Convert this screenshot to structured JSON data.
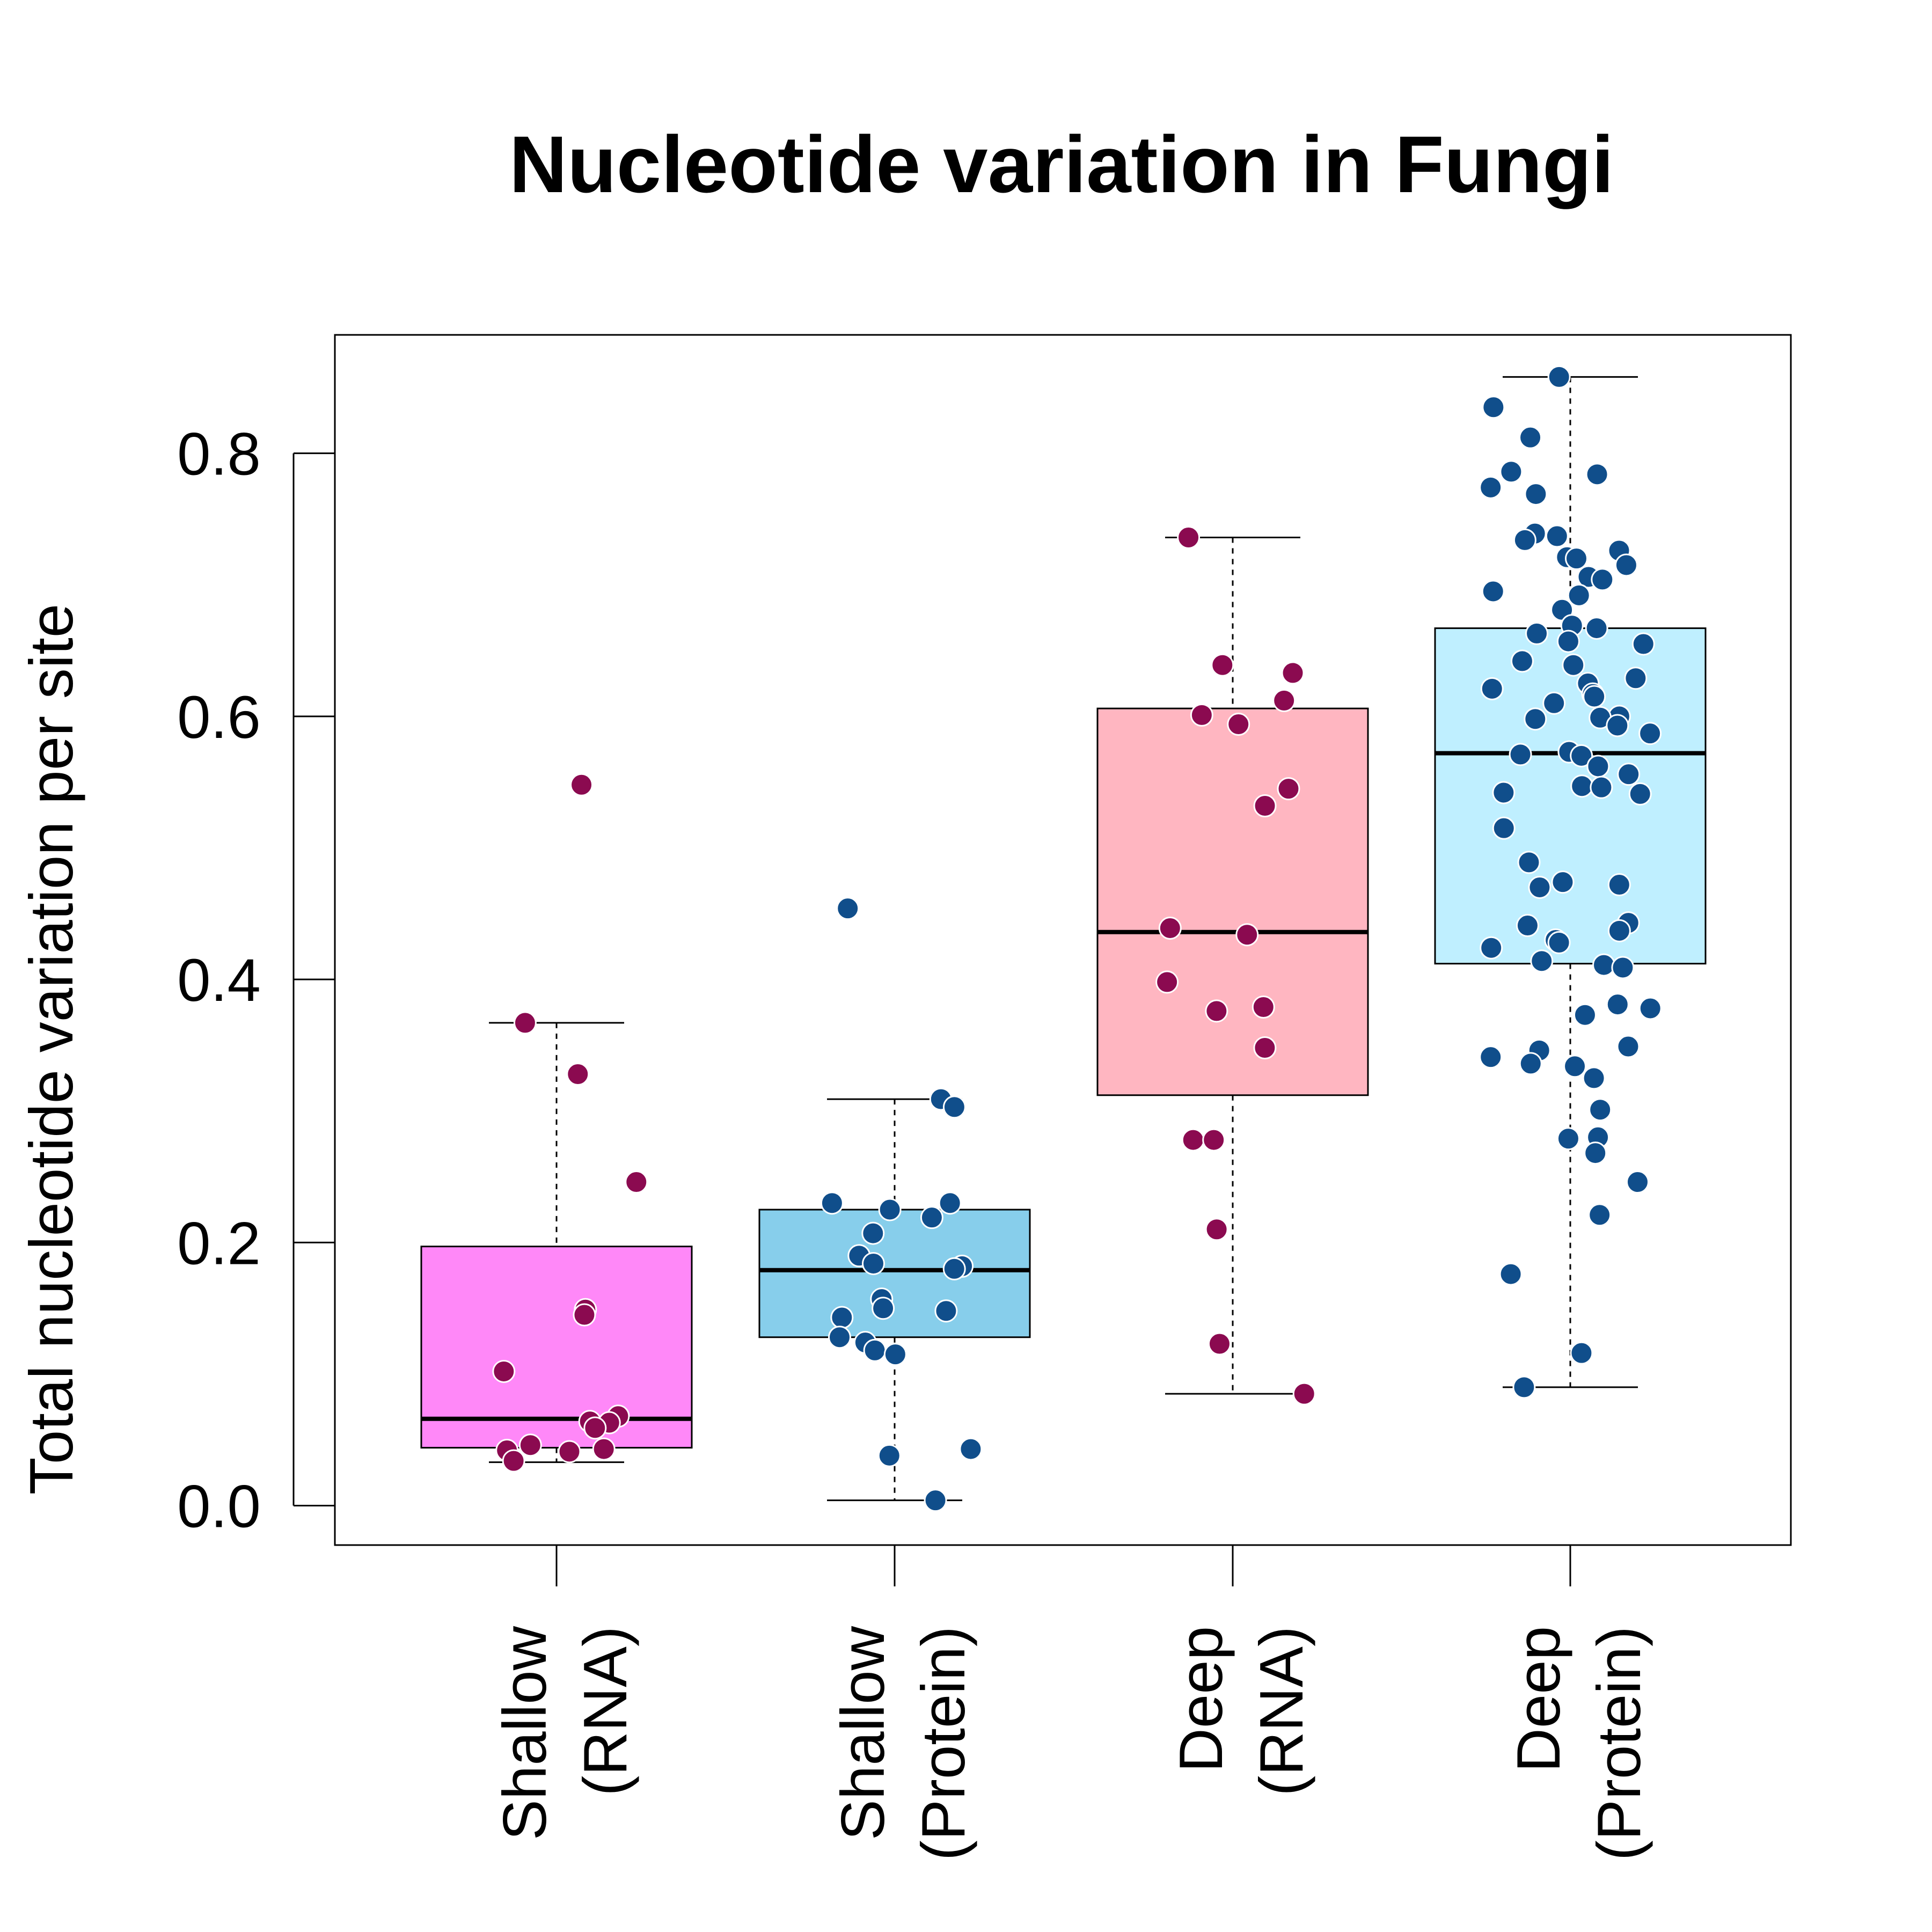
{
  "chart_data": {
    "type": "box",
    "title": "Nucleotide variation in Fungi",
    "ylabel": "Total nucleotide variation per site",
    "ylim": [
      -0.03,
      0.89
    ],
    "yticks": [
      "0.0",
      "0.2",
      "0.4",
      "0.6",
      "0.8"
    ],
    "categories": [
      {
        "line1": "Shallow",
        "line2": "(RNA)"
      },
      {
        "line1": "Shallow",
        "line2": "(Protein)"
      },
      {
        "line1": "Deep",
        "line2": "(RNA)"
      },
      {
        "line1": "Deep",
        "line2": "(Protein)"
      }
    ],
    "boxes": [
      {
        "min": 0.033,
        "q1": 0.044,
        "median": 0.066,
        "q3": 0.197,
        "max": 0.367,
        "fill": "#ff88f8",
        "point_color": "#8b0a50",
        "points": [
          0.548,
          0.367,
          0.328,
          0.246,
          0.149,
          0.145,
          0.102,
          0.068,
          0.064,
          0.063,
          0.059,
          0.046,
          0.043,
          0.042,
          0.041,
          0.034
        ]
      },
      {
        "min": 0.004,
        "q1": 0.128,
        "median": 0.179,
        "q3": 0.225,
        "max": 0.309,
        "fill": "#87ceeb",
        "point_color": "#104e8b",
        "points": [
          0.454,
          0.309,
          0.303,
          0.23,
          0.23,
          0.225,
          0.219,
          0.207,
          0.19,
          0.184,
          0.182,
          0.18,
          0.157,
          0.15,
          0.148,
          0.143,
          0.128,
          0.124,
          0.118,
          0.115,
          0.043,
          0.038,
          0.004
        ]
      },
      {
        "min": 0.085,
        "q1": 0.312,
        "median": 0.436,
        "q3": 0.606,
        "max": 0.736,
        "fill": "#ffb6c1",
        "point_color": "#8b0a50",
        "points": [
          0.736,
          0.639,
          0.633,
          0.612,
          0.601,
          0.594,
          0.545,
          0.532,
          0.439,
          0.434,
          0.398,
          0.379,
          0.376,
          0.348,
          0.278,
          0.278,
          0.21,
          0.123,
          0.085
        ]
      },
      {
        "min": 0.09,
        "q1": 0.412,
        "median": 0.572,
        "q3": 0.667,
        "max": 0.858,
        "fill": "#bfefff",
        "point_color": "#104e8b",
        "points": [
          0.858,
          0.835,
          0.812,
          0.786,
          0.784,
          0.774,
          0.769,
          0.739,
          0.737,
          0.734,
          0.726,
          0.721,
          0.72,
          0.715,
          0.706,
          0.704,
          0.695,
          0.692,
          0.681,
          0.669,
          0.667,
          0.663,
          0.657,
          0.655,
          0.642,
          0.639,
          0.629,
          0.625,
          0.621,
          0.617,
          0.615,
          0.61,
          0.6,
          0.599,
          0.598,
          0.593,
          0.587,
          0.573,
          0.571,
          0.57,
          0.562,
          0.556,
          0.547,
          0.546,
          0.542,
          0.541,
          0.515,
          0.489,
          0.474,
          0.472,
          0.47,
          0.443,
          0.441,
          0.437,
          0.43,
          0.428,
          0.424,
          0.414,
          0.411,
          0.409,
          0.381,
          0.378,
          0.373,
          0.349,
          0.346,
          0.341,
          0.336,
          0.334,
          0.325,
          0.301,
          0.28,
          0.279,
          0.268,
          0.246,
          0.221,
          0.176,
          0.116,
          0.09
        ]
      }
    ]
  }
}
